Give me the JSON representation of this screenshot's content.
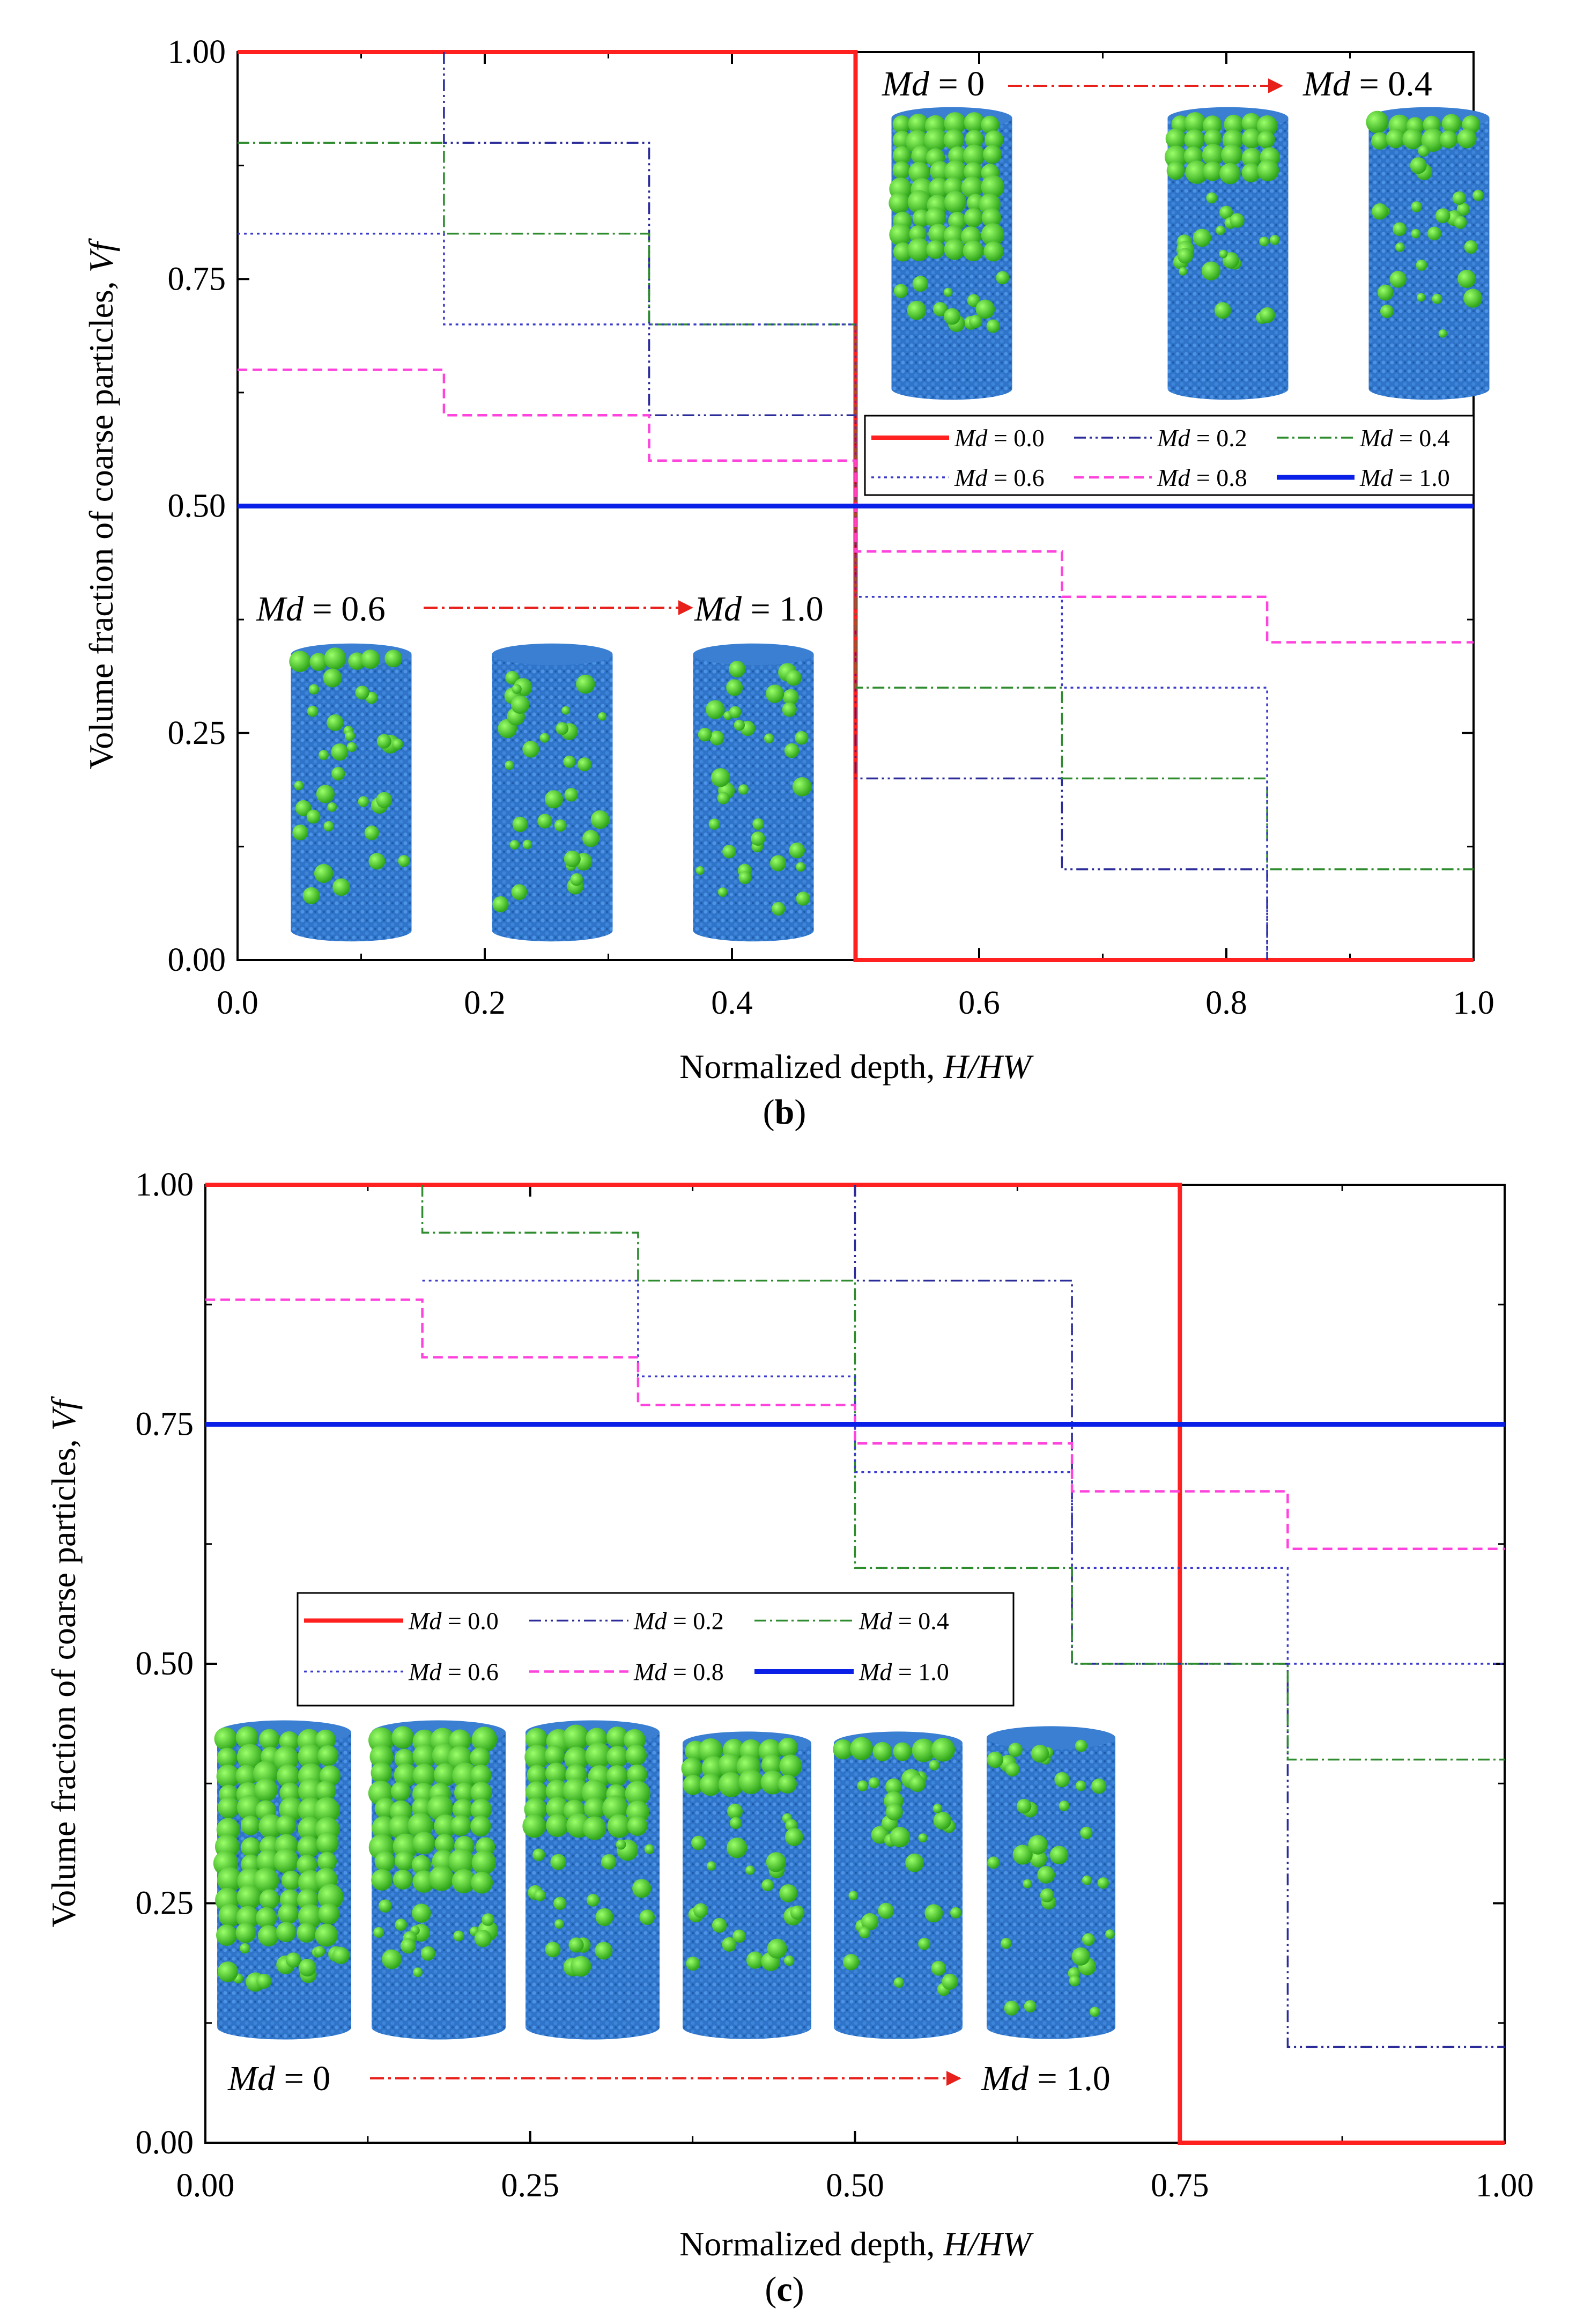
{
  "figure_captions": [
    "(b)",
    "(c)"
  ],
  "chart_data": [
    {
      "panel": "(b)",
      "type": "line",
      "xlabel_prefix": "Normalized depth, ",
      "xlabel_var": "H/HW",
      "ylabel_prefix": "Volume fraction of coarse particles, ",
      "ylabel_var": "Vf",
      "xlim": [
        0.0,
        1.0
      ],
      "ylim": [
        0.0,
        1.0
      ],
      "xticks": [
        "0.0",
        "0.2",
        "0.4",
        "0.6",
        "0.8",
        "1.0"
      ],
      "yticks": [
        "0.00",
        "0.25",
        "0.50",
        "0.75",
        "1.00"
      ],
      "legend": [
        "Md = 0.0",
        "Md = 0.2",
        "Md = 0.4",
        "Md = 0.6",
        "Md = 0.8",
        "Md = 1.0"
      ],
      "annotations": [
        {
          "from": "Md = 0",
          "to": "Md = 0.4"
        },
        {
          "from": "Md = 0.6",
          "to": "Md = 1.0"
        }
      ],
      "series": [
        {
          "name": "Md = 0.0",
          "color": "#ff2020",
          "x": [
            0.0,
            0.5,
            0.5,
            1.0
          ],
          "y": [
            1.0,
            1.0,
            0.0,
            0.0
          ]
        },
        {
          "name": "Md = 0.2",
          "color": "#2b2b9a",
          "x": [
            0.167,
            0.167,
            0.333,
            0.333,
            0.5,
            0.5,
            0.667,
            0.667,
            0.833,
            0.833
          ],
          "y": [
            1.0,
            0.9,
            0.9,
            0.6,
            0.6,
            0.2,
            0.2,
            0.1,
            0.1,
            0.0
          ]
        },
        {
          "name": "Md = 0.4",
          "color": "#2e8b2e",
          "x": [
            0.0,
            0.167,
            0.167,
            0.333,
            0.333,
            0.5,
            0.5,
            0.667,
            0.667,
            0.833,
            0.833,
            1.0
          ],
          "y": [
            0.9,
            0.9,
            0.8,
            0.8,
            0.7,
            0.7,
            0.3,
            0.3,
            0.2,
            0.2,
            0.1,
            0.1
          ]
        },
        {
          "name": "Md = 0.6",
          "color": "#3a3acc",
          "x": [
            0.0,
            0.167,
            0.167,
            0.5,
            0.5,
            0.667,
            0.667,
            0.833,
            0.833
          ],
          "y": [
            0.8,
            0.8,
            0.7,
            0.7,
            0.4,
            0.4,
            0.3,
            0.3,
            0.0
          ]
        },
        {
          "name": "Md = 0.8",
          "color": "#ff44dd",
          "x": [
            0.0,
            0.167,
            0.167,
            0.333,
            0.333,
            0.5,
            0.5,
            0.667,
            0.667,
            0.833,
            0.833,
            1.0
          ],
          "y": [
            0.65,
            0.65,
            0.6,
            0.6,
            0.55,
            0.55,
            0.45,
            0.45,
            0.4,
            0.4,
            0.35,
            0.35
          ]
        },
        {
          "name": "Md = 1.0",
          "color": "#0a20e6",
          "x": [
            0.0,
            1.0
          ],
          "y": [
            0.5,
            0.5
          ]
        }
      ]
    },
    {
      "panel": "(c)",
      "type": "line",
      "xlabel_prefix": "Normalized depth, ",
      "xlabel_var": "H/HW",
      "ylabel_prefix": "Volume fraction of coarse particles, ",
      "ylabel_var": "Vf",
      "xlim": [
        0.0,
        1.0
      ],
      "ylim": [
        0.0,
        1.0
      ],
      "xticks": [
        "0.00",
        "0.25",
        "0.50",
        "0.75",
        "1.00"
      ],
      "yticks": [
        "0.00",
        "0.25",
        "0.50",
        "0.75",
        "1.00"
      ],
      "legend": [
        "Md = 0.0",
        "Md = 0.2",
        "Md = 0.4",
        "Md = 0.6",
        "Md = 0.8",
        "Md = 1.0"
      ],
      "annotations": [
        {
          "from": "Md = 0",
          "to": "Md = 1.0"
        }
      ],
      "series": [
        {
          "name": "Md = 0.0",
          "color": "#ff2020",
          "x": [
            0.0,
            0.75,
            0.75,
            1.0
          ],
          "y": [
            1.0,
            1.0,
            0.0,
            0.0
          ]
        },
        {
          "name": "Md = 0.2",
          "color": "#2b2b9a",
          "x": [
            0.5,
            0.5,
            0.667,
            0.667,
            0.833,
            0.833,
            1.0
          ],
          "y": [
            1.0,
            0.9,
            0.9,
            0.5,
            0.5,
            0.1,
            0.1
          ]
        },
        {
          "name": "Md = 0.4",
          "color": "#2e8b2e",
          "x": [
            0.167,
            0.167,
            0.333,
            0.333,
            0.5,
            0.5,
            0.667,
            0.667,
            0.833,
            0.833,
            1.0
          ],
          "y": [
            1.0,
            0.95,
            0.95,
            0.9,
            0.9,
            0.6,
            0.6,
            0.5,
            0.5,
            0.4,
            0.4
          ]
        },
        {
          "name": "Md = 0.6",
          "color": "#3a3acc",
          "x": [
            0.167,
            0.333,
            0.333,
            0.5,
            0.5,
            0.667,
            0.667,
            0.833,
            0.833,
            1.0
          ],
          "y": [
            0.9,
            0.9,
            0.8,
            0.8,
            0.7,
            0.7,
            0.6,
            0.6,
            0.5,
            0.5
          ]
        },
        {
          "name": "Md = 0.8",
          "color": "#ff44dd",
          "x": [
            0.0,
            0.167,
            0.167,
            0.333,
            0.333,
            0.5,
            0.5,
            0.667,
            0.667,
            0.833,
            0.833,
            1.0
          ],
          "y": [
            0.88,
            0.88,
            0.82,
            0.82,
            0.77,
            0.77,
            0.73,
            0.73,
            0.68,
            0.68,
            0.62,
            0.62
          ]
        },
        {
          "name": "Md = 1.0",
          "color": "#0a20e6",
          "x": [
            0.0,
            1.0
          ],
          "y": [
            0.75,
            0.75
          ]
        }
      ]
    }
  ]
}
